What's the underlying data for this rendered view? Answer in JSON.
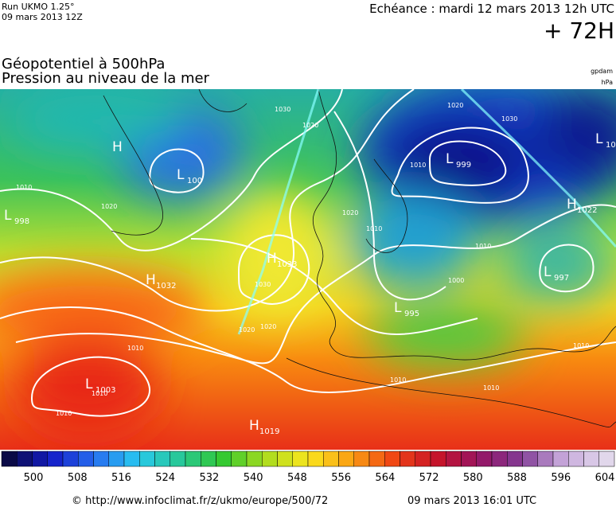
{
  "header": {
    "run": "Run UKMO 1.25°",
    "run_date": "09 mars 2013 12Z",
    "echeance": "Echéance : mardi 12 mars 2013 12h UTC",
    "lead": "+ 72H",
    "title1": "Géopotentiel à 500hPa",
    "title2": "Pression au niveau de la mer",
    "unit1": "gpdam",
    "unit2": "hPa"
  },
  "map": {
    "systems": [
      {
        "type": "H",
        "value": "1032"
      },
      {
        "type": "H",
        "value": "1033"
      },
      {
        "type": "L",
        "value": "1003"
      },
      {
        "type": "H",
        "value": "1019"
      },
      {
        "type": "L",
        "value": "999"
      },
      {
        "type": "L",
        "value": "995"
      },
      {
        "type": "L",
        "value": "997"
      },
      {
        "type": "H",
        "value": "1022"
      },
      {
        "type": "L",
        "value": "100"
      },
      {
        "type": "L",
        "value": "998"
      },
      {
        "type": "L",
        "value": "10"
      },
      {
        "type": "H",
        "value": ""
      }
    ],
    "contour_labels": [
      "1010",
      "1020",
      "1030",
      "1020",
      "1010",
      "1020",
      "1030",
      "1030",
      "1020",
      "1010",
      "1010",
      "1010",
      "1020",
      "1010",
      "1010",
      "1000",
      "1010",
      "1020",
      "1010",
      "1010"
    ]
  },
  "colorbar": {
    "ticks": [
      500,
      508,
      516,
      524,
      532,
      540,
      548,
      556,
      564,
      572,
      580,
      588,
      596,
      604
    ]
  },
  "footer": {
    "source": "© http://www.infoclimat.fr/z/ukmo/europe/500/72",
    "generated": "09 mars 2013 16:01 UTC"
  }
}
